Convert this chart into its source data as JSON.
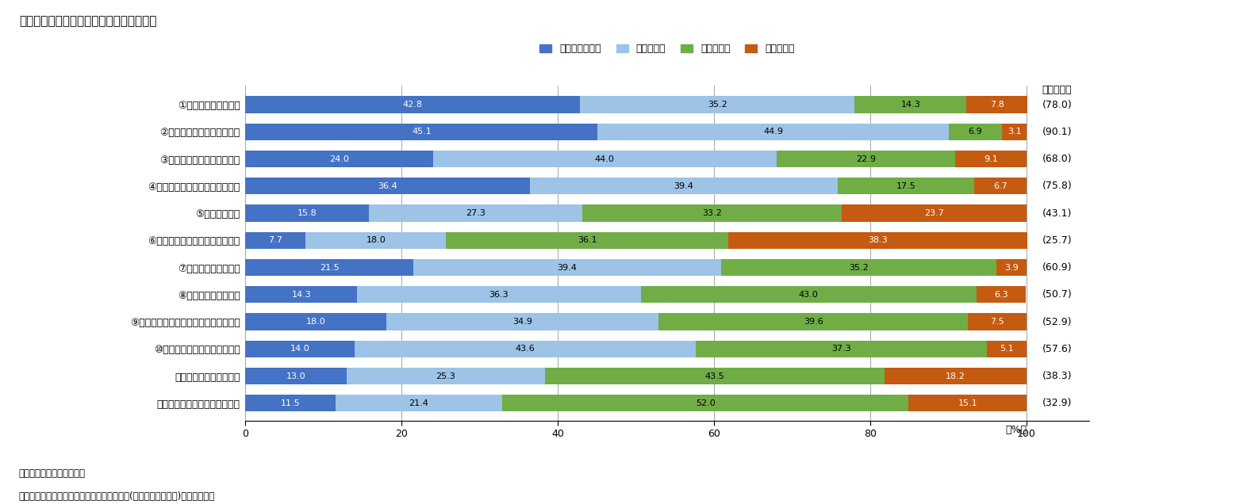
{
  "title": "図表１　持ち家への住み替え前後の改善度",
  "categories": [
    "①住宅の広さ・間取り",
    "②住宅の快適さ・使いやすさ",
    "③住宅の維持管理のしやすさ",
    "④住宅の断熱性、換気、採光など",
    "⑤光熱費の負担",
    "⑥ローン、家賃など住居費の負担",
    "⑦災害に対する安全性",
    "⑧犯罪に対する安全性",
    "⑨自然とのふれあいや外部空間のゆとり",
    "⑩高齢期の暮らしの安全・安心",
    "⑪通勤、通学などの利便",
    "⑫日常の買物、医療などの利便"
  ],
  "improvement_scores": [
    "(78.0)",
    "(90.1)",
    "(68.0)",
    "(75.8)",
    "(43.1)",
    "(25.7)",
    "(60.9)",
    "(50.7)",
    "(52.9)",
    "(57.6)",
    "(38.3)",
    "(32.9)"
  ],
  "series": {
    "大変良くなった": [
      42.8,
      45.1,
      24.0,
      36.4,
      15.8,
      7.7,
      21.5,
      14.3,
      18.0,
      14.0,
      13.0,
      11.5
    ],
    "良くなった": [
      35.2,
      44.9,
      44.0,
      39.4,
      27.3,
      18.0,
      39.4,
      36.3,
      34.9,
      43.6,
      25.3,
      21.4
    ],
    "変わらない": [
      14.3,
      6.9,
      22.9,
      17.5,
      33.2,
      36.1,
      35.2,
      43.0,
      39.6,
      37.3,
      43.5,
      52.0
    ],
    "悪くなった": [
      7.8,
      3.1,
      9.1,
      6.7,
      23.7,
      38.3,
      3.9,
      6.3,
      7.5,
      5.1,
      18.2,
      15.1
    ]
  },
  "colors": {
    "大変良くなった": "#4472C4",
    "良くなった": "#9DC3E6",
    "変わらない": "#70AD47",
    "悪くなった": "#C55A11"
  },
  "xlabel": "（%）",
  "xlim": [
    0,
    100
  ],
  "xticks": [
    0,
    20,
    40,
    60,
    80,
    100
  ],
  "note1": "（注）不明除く。以下同じ",
  "note2": "（資料）「平成２５年住生活総合調査確報」(国土交通省住宅局)　以下同じ。",
  "improvement_label": "（改善度）",
  "legend_order": [
    "大変良くなった",
    "良くなった",
    "変わらない",
    "悪くなった"
  ]
}
